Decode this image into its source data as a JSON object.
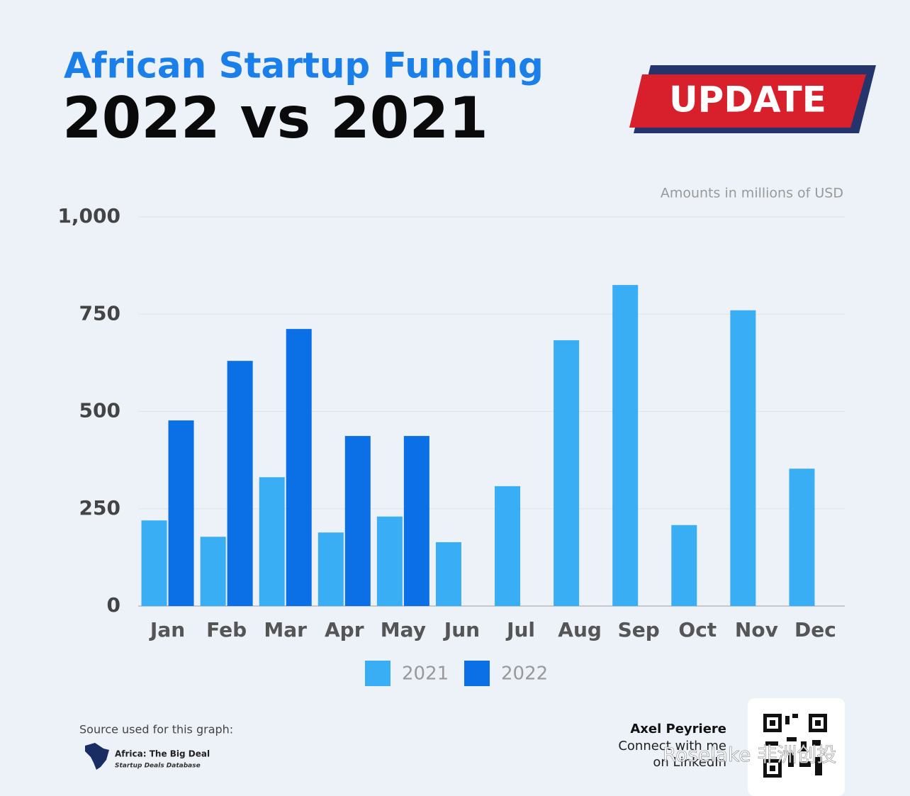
{
  "chart_data": {
    "type": "bar",
    "title": "African Startup Funding",
    "subtitle": "2022 vs 2021",
    "note": "Amounts in millions of USD",
    "categories": [
      "Jan",
      "Feb",
      "Mar",
      "Apr",
      "May",
      "Jun",
      "Jul",
      "Aug",
      "Sep",
      "Oct",
      "Nov",
      "Dec"
    ],
    "series": [
      {
        "name": "2021",
        "color": "#3aaef4",
        "values": [
          220,
          178,
          331,
          189,
          230,
          164,
          308,
          683,
          825,
          208,
          760,
          353
        ]
      },
      {
        "name": "2022",
        "color": "#0b6fe6",
        "values": [
          477,
          630,
          712,
          437,
          437,
          null,
          null,
          null,
          null,
          null,
          null,
          null
        ]
      }
    ],
    "ylim": [
      0,
      1000
    ],
    "yticks": [
      0,
      250,
      500,
      750,
      {
        "value": 1000,
        "label": "1,000"
      }
    ],
    "grid": true
  },
  "badge": "UPDATE",
  "source": {
    "caption": "Source used for this graph:",
    "name": "Africa: The Big Deal",
    "tagline": "Startup Deals Database"
  },
  "author": {
    "name": "Axel Peyriere",
    "line1": "Connect with me",
    "line2": "on LinkedIn"
  },
  "watermark": "Roselake 非洲创投"
}
